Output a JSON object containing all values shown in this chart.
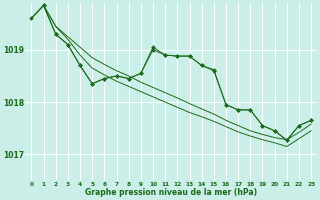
{
  "background_color": "#cceee8",
  "grid_color": "#ffffff",
  "line_color": "#1a6b1a",
  "marker_color": "#1a6b1a",
  "title": "Graphe pression niveau de la mer (hPa)",
  "hours": [
    0,
    1,
    2,
    3,
    4,
    5,
    6,
    7,
    8,
    9,
    10,
    11,
    12,
    13,
    14,
    15,
    16,
    17,
    18,
    19,
    20,
    21,
    22,
    23
  ],
  "ylim": [
    1016.5,
    1019.9
  ],
  "yticks": [
    1017,
    1018,
    1019
  ],
  "line1": [
    1019.6,
    1019.85,
    1019.45,
    1019.25,
    1019.05,
    1018.85,
    1018.72,
    1018.6,
    1018.5,
    1018.38,
    1018.28,
    1018.18,
    1018.08,
    1017.97,
    1017.87,
    1017.77,
    1017.65,
    1017.55,
    1017.45,
    1017.38,
    1017.32,
    1017.28,
    1017.42,
    1017.58
  ],
  "line2": [
    1019.6,
    1019.85,
    1019.45,
    1019.2,
    1018.9,
    1018.65,
    1018.52,
    1018.4,
    1018.3,
    1018.2,
    1018.1,
    1018.0,
    1017.9,
    1017.8,
    1017.72,
    1017.63,
    1017.53,
    1017.43,
    1017.35,
    1017.28,
    1017.22,
    1017.15,
    1017.3,
    1017.45
  ],
  "marked1_x": [
    0,
    1,
    2,
    3,
    4,
    5,
    6,
    7,
    8,
    9,
    10,
    11,
    12,
    13,
    14,
    15,
    16,
    17,
    18,
    19,
    20,
    21,
    22,
    23
  ],
  "marked1_y": [
    1019.6,
    1019.85,
    1019.3,
    1019.1,
    1018.7,
    1018.35,
    1018.45,
    1018.5,
    1018.45,
    1018.55,
    1019.0,
    1018.9,
    1018.88,
    1018.88,
    1018.7,
    1018.6,
    1017.95,
    1017.85,
    1017.85,
    1017.55,
    1017.45,
    1017.27,
    1017.55,
    1017.65
  ],
  "marked2_x": [
    1,
    2,
    3,
    4,
    5,
    6,
    7,
    8,
    9,
    10,
    11,
    12,
    13,
    14,
    15,
    16,
    17,
    18,
    19,
    20,
    21,
    22,
    23
  ],
  "marked2_y": [
    1019.85,
    1019.3,
    1019.1,
    1018.7,
    1018.35,
    1018.45,
    1018.5,
    1018.45,
    1018.55,
    1019.05,
    1018.9,
    1018.88,
    1018.88,
    1018.7,
    1018.62,
    1017.95,
    1017.85,
    1017.85,
    1017.55,
    1017.45,
    1017.27,
    1017.55,
    1017.65
  ]
}
